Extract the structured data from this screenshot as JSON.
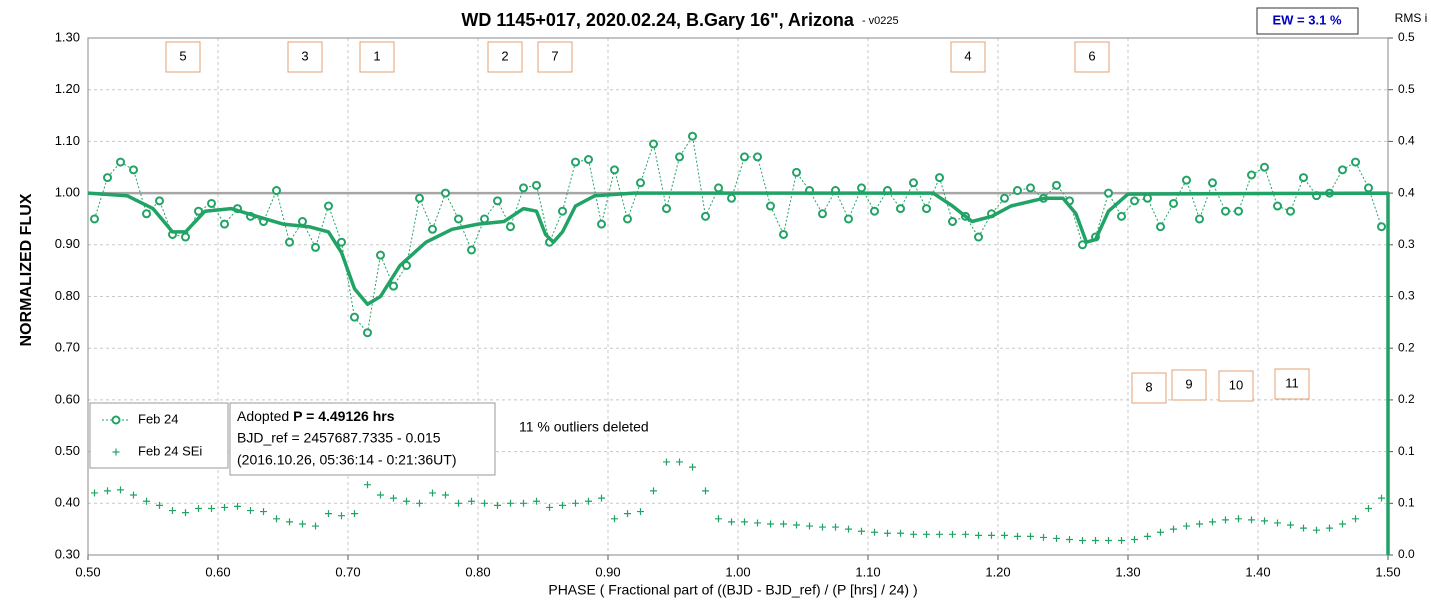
{
  "chart_data": {
    "type": "line",
    "title": "WD 1145+017, 2020.02.24, B.Gary 16\", Arizona",
    "title_suffix": "-  v0225",
    "xlabel": "PHASE ( Fractional part of ((BJD - BJD_ref) / (P [hrs] / 24) )",
    "ylabel": "NORMALIZED FLUX",
    "y2label": "RMS i",
    "ew_label": "EW = 3.1 %",
    "outlier_note": "11 % outliers deleted",
    "info": {
      "adopted": "Adopted",
      "period": "P = 4.49126 hrs",
      "bjd_ref": "BJD_ref = 2457687.7335 - 0.015",
      "date": "(2016.10.26, 05:36:14 - 0:21:36UT)"
    },
    "dip_labels": [
      "5",
      "3",
      "1",
      "2",
      "7",
      "4",
      "6",
      "8",
      "9",
      "10",
      "11"
    ],
    "xlim": [
      0.5,
      1.5
    ],
    "ylim": [
      0.3,
      1.3
    ],
    "y2lim": [
      0,
      0.5
    ],
    "xticks": [
      {
        "value": 0.5,
        "label": "0.50"
      },
      {
        "value": 0.6,
        "label": "0.60"
      },
      {
        "value": 0.7,
        "label": "0.70"
      },
      {
        "value": 0.8,
        "label": "0.80"
      },
      {
        "value": 0.9,
        "label": "0.90"
      },
      {
        "value": 1.0,
        "label": "1.00"
      },
      {
        "value": 1.1,
        "label": "1.10"
      },
      {
        "value": 1.2,
        "label": "1.20"
      },
      {
        "value": 1.3,
        "label": "1.30"
      },
      {
        "value": 1.4,
        "label": "1.40"
      },
      {
        "value": 1.5,
        "label": "1.50"
      }
    ],
    "yticks": [
      {
        "value": 0.3,
        "label": "0.30"
      },
      {
        "value": 0.4,
        "label": "0.40"
      },
      {
        "value": 0.5,
        "label": "0.50"
      },
      {
        "value": 0.6,
        "label": "0.60"
      },
      {
        "value": 0.7,
        "label": "0.70"
      },
      {
        "value": 0.8,
        "label": "0.80"
      },
      {
        "value": 0.9,
        "label": "0.90"
      },
      {
        "value": 1.0,
        "label": "1.00"
      },
      {
        "value": 1.1,
        "label": "1.10"
      },
      {
        "value": 1.2,
        "label": "1.20"
      },
      {
        "value": 1.3,
        "label": "1.30"
      }
    ],
    "y2ticks": [
      {
        "value": 0,
        "label": "0.0"
      },
      {
        "value": 0.05,
        "label": "0.1"
      },
      0.1,
      {
        "value": 0.15,
        "label": "0.2"
      },
      0.2,
      {
        "value": 0.25,
        "label": "0.3"
      },
      0.3,
      {
        "value": 0.35,
        "label": "0.4"
      },
      0.4,
      {
        "value": 0.45,
        "label": "0.5"
      },
      0.5
    ],
    "grid": true,
    "hline": 1.0,
    "hline_color": "#a6a6a6",
    "x": [
      0.505,
      0.515,
      0.525,
      0.535,
      0.545,
      0.555,
      0.565,
      0.575,
      0.585,
      0.595,
      0.605,
      0.615,
      0.625,
      0.635,
      0.645,
      0.655,
      0.665,
      0.675,
      0.685,
      0.695,
      0.705,
      0.715,
      0.725,
      0.735,
      0.745,
      0.755,
      0.765,
      0.775,
      0.785,
      0.795,
      0.805,
      0.815,
      0.825,
      0.835,
      0.845,
      0.855,
      0.865,
      0.875,
      0.885,
      0.895,
      0.905,
      0.915,
      0.925,
      0.935,
      0.945,
      0.955,
      0.965,
      0.975,
      0.985,
      0.995,
      1.005,
      1.015,
      1.025,
      1.035,
      1.045,
      1.055,
      1.065,
      1.075,
      1.085,
      1.095,
      1.105,
      1.115,
      1.125,
      1.135,
      1.145,
      1.155,
      1.165,
      1.175,
      1.185,
      1.195,
      1.205,
      1.215,
      1.225,
      1.235,
      1.245,
      1.255,
      1.265,
      1.275,
      1.285,
      1.295,
      1.305,
      1.315,
      1.325,
      1.335,
      1.345,
      1.355,
      1.365,
      1.375,
      1.385,
      1.395,
      1.405,
      1.415,
      1.425,
      1.435,
      1.445,
      1.455,
      1.465,
      1.475,
      1.485,
      1.495
    ],
    "series": [
      {
        "name": "Feb 24",
        "color": "#21a366",
        "marker": "circle",
        "values": [
          0.95,
          1.03,
          1.06,
          1.045,
          0.96,
          0.985,
          0.92,
          0.915,
          0.965,
          0.98,
          0.94,
          0.97,
          0.955,
          0.945,
          1.005,
          0.905,
          0.945,
          0.895,
          0.975,
          0.905,
          0.76,
          0.73,
          0.88,
          0.82,
          0.86,
          0.99,
          0.93,
          1.0,
          0.95,
          0.89,
          0.95,
          0.985,
          0.935,
          1.01,
          1.015,
          0.905,
          0.965,
          1.06,
          1.065,
          0.94,
          1.045,
          0.95,
          1.02,
          1.095,
          0.97,
          1.07,
          1.11,
          0.955,
          1.01,
          0.99,
          1.07,
          1.07,
          0.975,
          0.92,
          1.04,
          1.005,
          0.96,
          1.005,
          0.95,
          1.01,
          0.965,
          1.005,
          0.97,
          1.02,
          0.97,
          1.03,
          0.945,
          0.955,
          0.915,
          0.96,
          0.99,
          1.005,
          1.01,
          0.99,
          1.015,
          0.985,
          0.9,
          0.915,
          1.0,
          0.955,
          0.985,
          0.99,
          0.935,
          0.98,
          1.025,
          0.95,
          1.02,
          0.965,
          0.965,
          1.035,
          1.05,
          0.975,
          0.965,
          1.03,
          0.995,
          1.0,
          1.045,
          1.06,
          1.01,
          0.935
        ]
      },
      {
        "name": "Feb 24 SEi",
        "color": "#21a366",
        "marker": "plus",
        "axis": "y2",
        "values": [
          0.06,
          0.062,
          0.063,
          0.058,
          0.052,
          0.048,
          0.043,
          0.041,
          0.045,
          0.045,
          0.046,
          0.047,
          0.043,
          0.042,
          0.035,
          0.032,
          0.03,
          0.028,
          0.04,
          0.038,
          0.04,
          0.068,
          0.058,
          0.055,
          0.052,
          0.05,
          0.06,
          0.058,
          0.05,
          0.052,
          0.05,
          0.048,
          0.05,
          0.05,
          0.052,
          0.046,
          0.048,
          0.05,
          0.052,
          0.055,
          0.035,
          0.04,
          0.042,
          0.062,
          0.09,
          0.09,
          0.085,
          0.062,
          0.035,
          0.032,
          0.032,
          0.031,
          0.03,
          0.03,
          0.029,
          0.028,
          0.027,
          0.027,
          0.025,
          0.023,
          0.022,
          0.021,
          0.021,
          0.02,
          0.02,
          0.02,
          0.02,
          0.02,
          0.019,
          0.019,
          0.019,
          0.018,
          0.018,
          0.017,
          0.016,
          0.015,
          0.014,
          0.014,
          0.014,
          0.014,
          0.015,
          0.018,
          0.022,
          0.025,
          0.028,
          0.03,
          0.032,
          0.034,
          0.035,
          0.034,
          0.033,
          0.031,
          0.029,
          0.026,
          0.024,
          0.026,
          0.03,
          0.035,
          0.045,
          0.055
        ]
      }
    ],
    "model": {
      "color": "#21a366",
      "x": [
        0.5,
        0.53,
        0.55,
        0.565,
        0.575,
        0.59,
        0.61,
        0.63,
        0.65,
        0.67,
        0.685,
        0.695,
        0.705,
        0.715,
        0.725,
        0.74,
        0.76,
        0.78,
        0.8,
        0.82,
        0.835,
        0.845,
        0.852,
        0.858,
        0.865,
        0.875,
        0.89,
        0.92,
        1.15,
        1.165,
        1.18,
        1.195,
        1.21,
        1.235,
        1.25,
        1.26,
        1.268,
        1.275,
        1.285,
        1.3,
        1.5,
        1.5
      ],
      "values": [
        1.0,
        0.995,
        0.97,
        0.925,
        0.925,
        0.965,
        0.97,
        0.955,
        0.94,
        0.935,
        0.925,
        0.885,
        0.815,
        0.785,
        0.8,
        0.86,
        0.905,
        0.93,
        0.94,
        0.945,
        0.97,
        0.965,
        0.92,
        0.905,
        0.925,
        0.975,
        0.995,
        1.0,
        1.0,
        0.975,
        0.945,
        0.955,
        0.975,
        0.99,
        0.99,
        0.96,
        0.905,
        0.91,
        0.965,
        0.998,
        1.0,
        0.3
      ]
    }
  }
}
